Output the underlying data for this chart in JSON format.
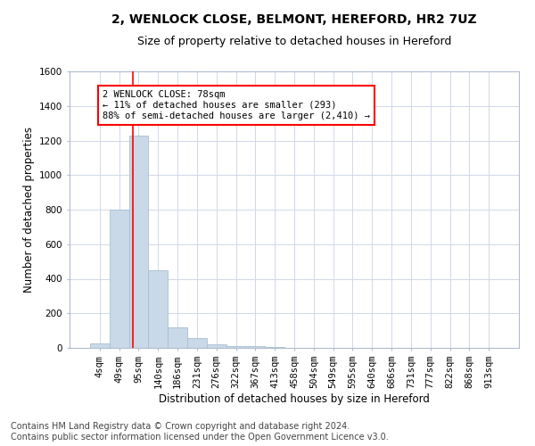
{
  "title1": "2, WENLOCK CLOSE, BELMONT, HEREFORD, HR2 7UZ",
  "title2": "Size of property relative to detached houses in Hereford",
  "xlabel": "Distribution of detached houses by size in Hereford",
  "ylabel": "Number of detached properties",
  "categories": [
    "4sqm",
    "49sqm",
    "95sqm",
    "140sqm",
    "186sqm",
    "231sqm",
    "276sqm",
    "322sqm",
    "367sqm",
    "413sqm",
    "458sqm",
    "504sqm",
    "549sqm",
    "595sqm",
    "640sqm",
    "686sqm",
    "731sqm",
    "777sqm",
    "822sqm",
    "868sqm",
    "913sqm"
  ],
  "values": [
    25,
    800,
    1230,
    450,
    120,
    55,
    20,
    12,
    8,
    5,
    1,
    0,
    0,
    0,
    0,
    0,
    0,
    0,
    0,
    0,
    0
  ],
  "bar_color": "#c9d9e8",
  "bar_edge_color": "#a8bfd0",
  "grid_color": "#d0d8e8",
  "property_line_x": 1.72,
  "annotation_text": "2 WENLOCK CLOSE: 78sqm\n← 11% of detached houses are smaller (293)\n88% of semi-detached houses are larger (2,410) →",
  "annotation_box_color": "white",
  "annotation_box_edge_color": "red",
  "property_line_color": "red",
  "ylim": [
    0,
    1600
  ],
  "yticks": [
    0,
    200,
    400,
    600,
    800,
    1000,
    1200,
    1400,
    1600
  ],
  "footer": "Contains HM Land Registry data © Crown copyright and database right 2024.\nContains public sector information licensed under the Open Government Licence v3.0.",
  "title1_fontsize": 10,
  "title2_fontsize": 9,
  "xlabel_fontsize": 8.5,
  "ylabel_fontsize": 8.5,
  "tick_fontsize": 7.5,
  "footer_fontsize": 7,
  "ann_fontsize": 7.5
}
